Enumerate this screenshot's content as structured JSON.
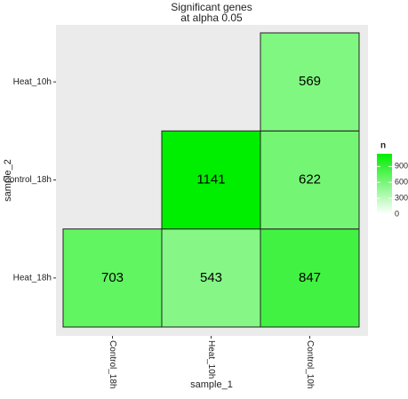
{
  "chart_data": {
    "type": "heatmap",
    "title": "Significant genes",
    "subtitle": "at alpha 0.05",
    "x_label": "sample_1",
    "y_label": "sample_2",
    "x_categories": [
      "Control_18h",
      "Heat_10h",
      "Control_10h"
    ],
    "y_categories": [
      "Heat_18h",
      "Control_18h",
      "Heat_10h"
    ],
    "values": [
      [
        703,
        543,
        847
      ],
      [
        null,
        1141,
        622
      ],
      [
        null,
        null,
        569
      ]
    ],
    "legend_title": "n",
    "color_low": "#ffffff",
    "color_high": "#00ee00",
    "color_lim": [
      0,
      1141
    ],
    "color_ticks": [
      0,
      300,
      600,
      900
    ]
  }
}
